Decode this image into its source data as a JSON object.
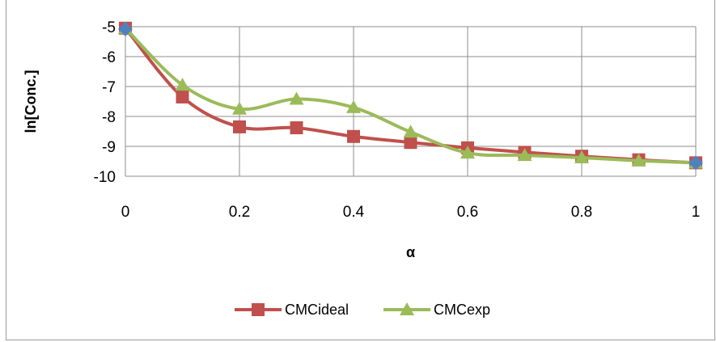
{
  "chart_data": {
    "type": "line",
    "xlabel": "α",
    "ylabel": "ln[Conc.]",
    "xlim": [
      0,
      1
    ],
    "ylim": [
      -10,
      -5
    ],
    "xticks": [
      "0",
      "0.2",
      "0.4",
      "0.6",
      "0.8",
      "1"
    ],
    "yticks": [
      "-5",
      "-6",
      "-7",
      "-8",
      "-9",
      "-10"
    ],
    "grid": true,
    "legend_position": "bottom",
    "x": [
      0,
      0.1,
      0.2,
      0.3,
      0.4,
      0.5,
      0.6,
      0.7,
      0.8,
      0.9,
      1
    ],
    "series": [
      {
        "name": "CMCideal",
        "color": "#c0504d",
        "marker": "square",
        "values": [
          -5.05,
          -7.35,
          -8.35,
          -8.38,
          -8.67,
          -8.87,
          -9.05,
          -9.2,
          -9.33,
          -9.45,
          -9.55
        ]
      },
      {
        "name": "CMCexp",
        "color": "#9bbb59",
        "marker": "triangle",
        "values": [
          -5.05,
          -6.95,
          -7.75,
          -7.42,
          -7.7,
          -8.52,
          -9.22,
          -9.3,
          -9.38,
          -9.48,
          -9.55
        ]
      }
    ],
    "endpoints": {
      "color": "#4f81bd",
      "marker": "diamond",
      "points": [
        [
          0,
          -5.08
        ],
        [
          1,
          -9.55
        ]
      ]
    }
  }
}
